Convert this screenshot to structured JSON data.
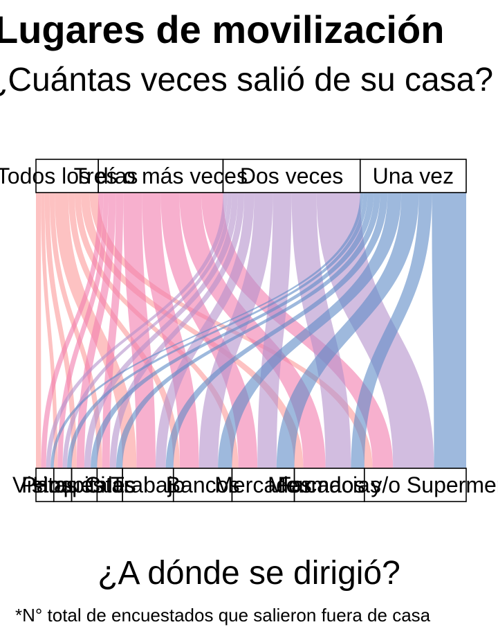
{
  "title": "Lugares de movilización",
  "subtitle": "¿Cuántas veces salió de su casa?",
  "caption": "*N° total de encuestados que salieron fuera de casa",
  "colors": {
    "todos_los_dias": "#FB9A99",
    "tres_o_mas": "#F17BAE",
    "dos_veces": "#B491CB",
    "una_vez": "#5E8AC6",
    "box_fill": "#FFFFFF",
    "box_stroke": "#000000"
  },
  "chart_data": {
    "type": "alluvial",
    "xlabel": "¿A dónde se dirigió?",
    "top_axis": {
      "categories": [
        "Todos los días",
        "Tres o más veces",
        "Dos veces",
        "Una vez"
      ],
      "widths": [
        1,
        2,
        2.2,
        1.7
      ]
    },
    "bottom_axis": {
      "categories": [
        "Visitas",
        "Parques",
        "Hospitales",
        "Citas",
        "Trabajo",
        "Bancos",
        "Mercados",
        "Farmacias",
        "Mercados y/o Supermercados"
      ],
      "widths": [
        0.28,
        0.28,
        0.4,
        0.4,
        0.8,
        0.92,
        0.98,
        1.1,
        1.6
      ]
    },
    "flows": [
      {
        "from": "Todos los días",
        "to": "Visitas",
        "value": 0.08
      },
      {
        "from": "Todos los días",
        "to": "Parques",
        "value": 0.06
      },
      {
        "from": "Todos los días",
        "to": "Hospitales",
        "value": 0.08
      },
      {
        "from": "Todos los días",
        "to": "Citas",
        "value": 0.08
      },
      {
        "from": "Todos los días",
        "to": "Trabajo",
        "value": 0.22
      },
      {
        "from": "Todos los días",
        "to": "Bancos",
        "value": 0.1
      },
      {
        "from": "Todos los días",
        "to": "Mercados",
        "value": 0.1
      },
      {
        "from": "Todos los días",
        "to": "Farmacias",
        "value": 0.14
      },
      {
        "from": "Todos los días",
        "to": "Mercados y/o Supermercados",
        "value": 0.14
      },
      {
        "from": "Tres o más veces",
        "to": "Visitas",
        "value": 0.08
      },
      {
        "from": "Tres o más veces",
        "to": "Parques",
        "value": 0.08
      },
      {
        "from": "Tres o más veces",
        "to": "Hospitales",
        "value": 0.12
      },
      {
        "from": "Tres o más veces",
        "to": "Citas",
        "value": 0.12
      },
      {
        "from": "Tres o más veces",
        "to": "Trabajo",
        "value": 0.3
      },
      {
        "from": "Tres o más veces",
        "to": "Bancos",
        "value": 0.3
      },
      {
        "from": "Tres o más veces",
        "to": "Mercados",
        "value": 0.3
      },
      {
        "from": "Tres o más veces",
        "to": "Farmacias",
        "value": 0.35
      },
      {
        "from": "Tres o más veces",
        "to": "Mercados y/o Supermercados",
        "value": 0.35
      },
      {
        "from": "Dos veces",
        "to": "Visitas",
        "value": 0.07
      },
      {
        "from": "Dos veces",
        "to": "Parques",
        "value": 0.07
      },
      {
        "from": "Dos veces",
        "to": "Hospitales",
        "value": 0.1
      },
      {
        "from": "Dos veces",
        "to": "Citas",
        "value": 0.1
      },
      {
        "from": "Dos veces",
        "to": "Trabajo",
        "value": 0.16
      },
      {
        "from": "Dos veces",
        "to": "Bancos",
        "value": 0.3
      },
      {
        "from": "Dos veces",
        "to": "Mercados",
        "value": 0.3
      },
      {
        "from": "Dos veces",
        "to": "Farmacias",
        "value": 0.4
      },
      {
        "from": "Dos veces",
        "to": "Mercados y/o Supermercados",
        "value": 0.7
      },
      {
        "from": "Una vez",
        "to": "Visitas",
        "value": 0.05
      },
      {
        "from": "Una vez",
        "to": "Parques",
        "value": 0.07
      },
      {
        "from": "Una vez",
        "to": "Hospitales",
        "value": 0.1
      },
      {
        "from": "Una vez",
        "to": "Citas",
        "value": 0.1
      },
      {
        "from": "Una vez",
        "to": "Trabajo",
        "value": 0.12
      },
      {
        "from": "Una vez",
        "to": "Bancos",
        "value": 0.22
      },
      {
        "from": "Una vez",
        "to": "Mercados",
        "value": 0.28
      },
      {
        "from": "Una vez",
        "to": "Farmacias",
        "value": 0.21
      },
      {
        "from": "Una vez",
        "to": "Mercados y/o Supermercados",
        "value": 0.55
      }
    ]
  }
}
